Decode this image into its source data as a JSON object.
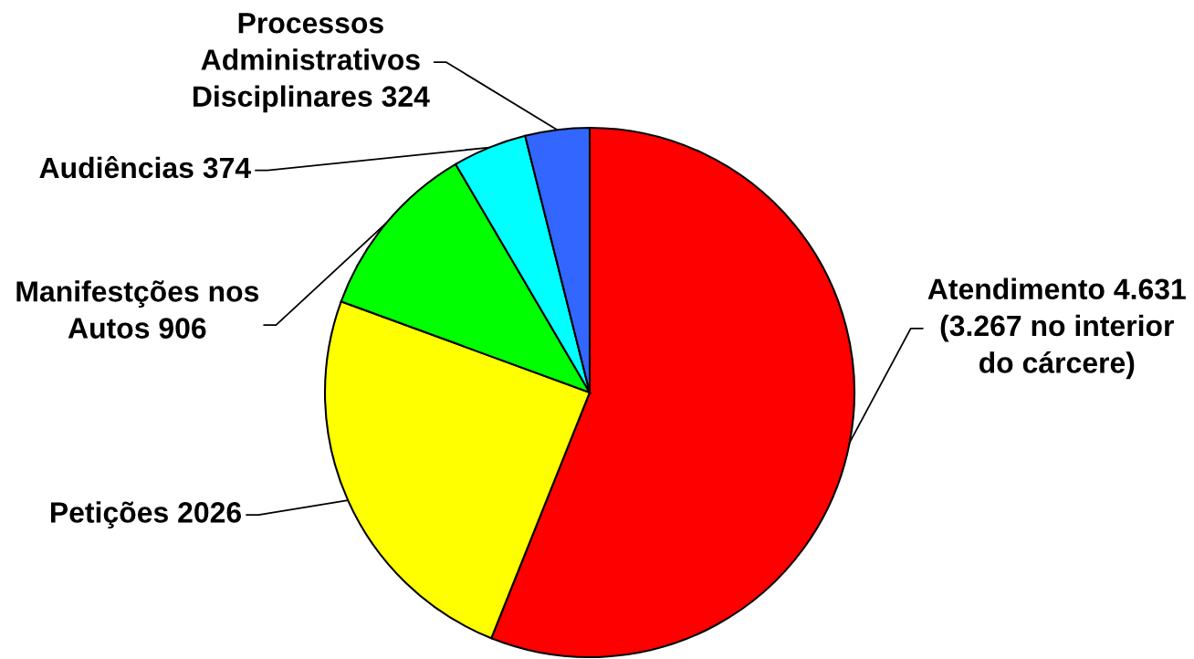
{
  "chart_data": {
    "type": "pie",
    "categories": [
      "Atendimento",
      "Petições",
      "Manifestções nos\nAutos",
      "Audiências",
      "Processos\nAdministrativos\nDisciplinares"
    ],
    "values": [
      4631,
      2026,
      906,
      374,
      324
    ],
    "value_labels": [
      "4.631\n(3.267 no interior\ndo cárcere)",
      "2026",
      "906",
      "374",
      "324"
    ],
    "colors": [
      "#ff0000",
      "#ffff00",
      "#00ff00",
      "#00ffff",
      "#3366ff"
    ]
  }
}
